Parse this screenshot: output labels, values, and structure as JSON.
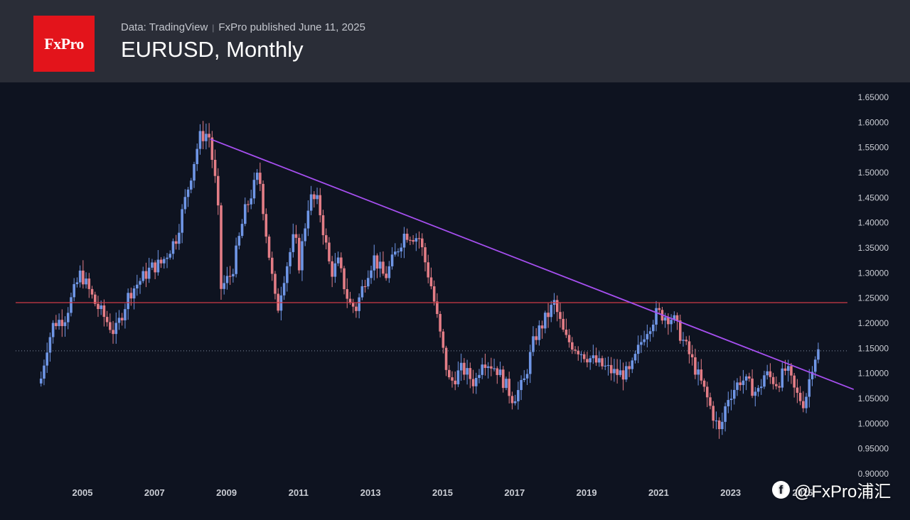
{
  "header": {
    "logo_text": "FxPro",
    "data_source": "Data: TradingView",
    "published": "FxPro published June 11, 2025",
    "title": "EURUSD, Monthly"
  },
  "watermark": {
    "icon_glyph": "f",
    "text": "@FxPro浦汇"
  },
  "colors": {
    "background": "#0e1320",
    "header_bg": "#2a2d37",
    "logo_bg": "#e3141b",
    "candle_up": "#6f96e6",
    "candle_down": "#e37d86",
    "trendline": "#a64ff0",
    "support_line": "#cf3b47",
    "axis_text": "#c9ccd3"
  },
  "chart_data": {
    "type": "candlestick",
    "title": "EURUSD, Monthly",
    "x_tick_labels": [
      "2005",
      "2007",
      "2009",
      "2011",
      "2013",
      "2015",
      "2017",
      "2019",
      "2021",
      "2023",
      "2025"
    ],
    "y_tick_labels": [
      "1.65000",
      "1.60000",
      "1.55000",
      "1.50000",
      "1.45000",
      "1.40000",
      "1.35000",
      "1.30000",
      "1.25000",
      "1.20000",
      "1.15000",
      "1.10000",
      "1.05000",
      "1.00000",
      "0.95000",
      "0.90000"
    ],
    "ylim": [
      0.9,
      1.65
    ],
    "x_range": [
      2003.85,
      2025.45
    ],
    "closes_anchor_series": [
      [
        2003.85,
        1.09
      ],
      [
        2004.0,
        1.15
      ],
      [
        2004.2,
        1.2
      ],
      [
        2004.5,
        1.21
      ],
      [
        2004.8,
        1.27
      ],
      [
        2004.95,
        1.3
      ],
      [
        2005.35,
        1.24
      ],
      [
        2005.9,
        1.18
      ],
      [
        2006.3,
        1.26
      ],
      [
        2006.9,
        1.31
      ],
      [
        2007.2,
        1.32
      ],
      [
        2007.6,
        1.37
      ],
      [
        2007.9,
        1.46
      ],
      [
        2008.25,
        1.57
      ],
      [
        2008.5,
        1.58
      ],
      [
        2008.75,
        1.45
      ],
      [
        2008.85,
        1.27
      ],
      [
        2009.15,
        1.3
      ],
      [
        2009.5,
        1.42
      ],
      [
        2009.9,
        1.5
      ],
      [
        2010.1,
        1.38
      ],
      [
        2010.4,
        1.22
      ],
      [
        2010.55,
        1.28
      ],
      [
        2010.9,
        1.38
      ],
      [
        2011.0,
        1.31
      ],
      [
        2011.3,
        1.45
      ],
      [
        2011.55,
        1.44
      ],
      [
        2011.9,
        1.3
      ],
      [
        2012.1,
        1.32
      ],
      [
        2012.4,
        1.24
      ],
      [
        2012.6,
        1.23
      ],
      [
        2012.9,
        1.3
      ],
      [
        2013.1,
        1.33
      ],
      [
        2013.4,
        1.29
      ],
      [
        2013.7,
        1.34
      ],
      [
        2013.95,
        1.38
      ],
      [
        2014.35,
        1.37
      ],
      [
        2014.7,
        1.27
      ],
      [
        2015.05,
        1.13
      ],
      [
        2015.2,
        1.08
      ],
      [
        2015.55,
        1.11
      ],
      [
        2015.9,
        1.08
      ],
      [
        2016.1,
        1.13
      ],
      [
        2016.5,
        1.11
      ],
      [
        2016.95,
        1.05
      ],
      [
        2017.25,
        1.08
      ],
      [
        2017.55,
        1.17
      ],
      [
        2017.95,
        1.22
      ],
      [
        2018.1,
        1.24
      ],
      [
        2018.4,
        1.17
      ],
      [
        2018.9,
        1.14
      ],
      [
        2019.3,
        1.12
      ],
      [
        2019.8,
        1.1
      ],
      [
        2020.2,
        1.1
      ],
      [
        2020.6,
        1.18
      ],
      [
        2020.95,
        1.22
      ],
      [
        2021.4,
        1.21
      ],
      [
        2021.9,
        1.13
      ],
      [
        2022.3,
        1.06
      ],
      [
        2022.7,
        0.98
      ],
      [
        2022.9,
        1.05
      ],
      [
        2023.3,
        1.09
      ],
      [
        2023.75,
        1.06
      ],
      [
        2023.95,
        1.1
      ],
      [
        2024.3,
        1.08
      ],
      [
        2024.55,
        1.11
      ],
      [
        2024.8,
        1.06
      ],
      [
        2025.05,
        1.04
      ],
      [
        2025.3,
        1.13
      ],
      [
        2025.45,
        1.145
      ]
    ],
    "trendline": {
      "from": [
        2008.55,
        1.567
      ],
      "to": [
        2025.45,
        1.078
      ]
    },
    "horizontal_line": {
      "y": 1.241
    },
    "current_price_line": {
      "y": 1.145
    },
    "grid": false
  }
}
